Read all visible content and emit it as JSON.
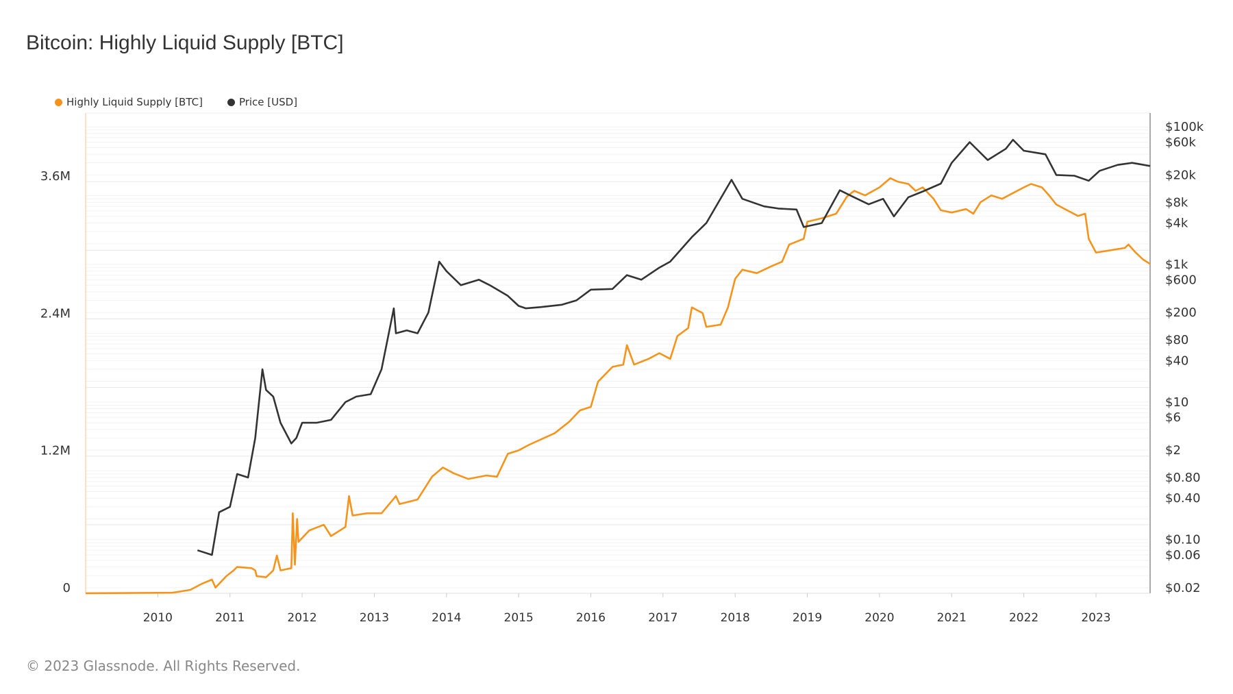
{
  "chart_data": {
    "type": "line",
    "title": "Bitcoin: Highly Liquid Supply [BTC]",
    "footer": "© 2023 Glassnode. All Rights Reserved.",
    "legend_position": "top-left",
    "grid": true,
    "x_range": [
      2009.0,
      2023.75
    ],
    "x_ticks": [
      "2010",
      "2011",
      "2012",
      "2013",
      "2014",
      "2015",
      "2016",
      "2017",
      "2018",
      "2019",
      "2020",
      "2021",
      "2022",
      "2023"
    ],
    "y_left": {
      "scale": "linear",
      "range": [
        0,
        4200000
      ],
      "ticks": [
        {
          "v": 0,
          "label": "0"
        },
        {
          "v": 1200000,
          "label": "1.2M"
        },
        {
          "v": 2400000,
          "label": "2.4M"
        },
        {
          "v": 3600000,
          "label": "3.6M"
        }
      ]
    },
    "y_right": {
      "scale": "log",
      "range": [
        0.0166,
        159000
      ],
      "ticks": [
        {
          "v": 100000,
          "label": "$100k"
        },
        {
          "v": 60000,
          "label": "$60k"
        },
        {
          "v": 20000,
          "label": "$20k"
        },
        {
          "v": 8000,
          "label": "$8k"
        },
        {
          "v": 4000,
          "label": "$4k"
        },
        {
          "v": 1000,
          "label": "$1k"
        },
        {
          "v": 600,
          "label": "$600"
        },
        {
          "v": 200,
          "label": "$200"
        },
        {
          "v": 80,
          "label": "$80"
        },
        {
          "v": 40,
          "label": "$40"
        },
        {
          "v": 10,
          "label": "$10"
        },
        {
          "v": 6,
          "label": "$6"
        },
        {
          "v": 2,
          "label": "$2"
        },
        {
          "v": 0.8,
          "label": "$0.80"
        },
        {
          "v": 0.4,
          "label": "$0.40"
        },
        {
          "v": 0.1,
          "label": "$0.10"
        },
        {
          "v": 0.06,
          "label": "$0.06"
        },
        {
          "v": 0.02,
          "label": "$0.02"
        }
      ]
    },
    "series": [
      {
        "name": "Highly Liquid Supply [BTC]",
        "axis": "left",
        "color": "#f7931a",
        "points": [
          [
            2009.0,
            0
          ],
          [
            2010.2,
            5000
          ],
          [
            2010.45,
            30000
          ],
          [
            2010.6,
            80000
          ],
          [
            2010.75,
            120000
          ],
          [
            2010.8,
            50000
          ],
          [
            2010.95,
            150000
          ],
          [
            2011.05,
            200000
          ],
          [
            2011.1,
            230000
          ],
          [
            2011.3,
            220000
          ],
          [
            2011.35,
            200000
          ],
          [
            2011.37,
            150000
          ],
          [
            2011.5,
            140000
          ],
          [
            2011.6,
            200000
          ],
          [
            2011.65,
            330000
          ],
          [
            2011.7,
            200000
          ],
          [
            2011.85,
            220000
          ],
          [
            2011.87,
            700000
          ],
          [
            2011.9,
            250000
          ],
          [
            2011.93,
            650000
          ],
          [
            2011.95,
            450000
          ],
          [
            2012.1,
            550000
          ],
          [
            2012.3,
            600000
          ],
          [
            2012.4,
            500000
          ],
          [
            2012.6,
            580000
          ],
          [
            2012.65,
            850000
          ],
          [
            2012.7,
            680000
          ],
          [
            2012.9,
            700000
          ],
          [
            2013.1,
            700000
          ],
          [
            2013.3,
            850000
          ],
          [
            2013.35,
            780000
          ],
          [
            2013.6,
            820000
          ],
          [
            2013.8,
            1020000
          ],
          [
            2013.95,
            1100000
          ],
          [
            2014.1,
            1050000
          ],
          [
            2014.3,
            1000000
          ],
          [
            2014.55,
            1030000
          ],
          [
            2014.7,
            1020000
          ],
          [
            2014.85,
            1220000
          ],
          [
            2015.0,
            1250000
          ],
          [
            2015.15,
            1300000
          ],
          [
            2015.5,
            1400000
          ],
          [
            2015.7,
            1500000
          ],
          [
            2015.85,
            1600000
          ],
          [
            2016.0,
            1630000
          ],
          [
            2016.1,
            1850000
          ],
          [
            2016.3,
            1980000
          ],
          [
            2016.45,
            2000000
          ],
          [
            2016.5,
            2170000
          ],
          [
            2016.6,
            2000000
          ],
          [
            2016.8,
            2050000
          ],
          [
            2016.95,
            2100000
          ],
          [
            2017.1,
            2050000
          ],
          [
            2017.2,
            2250000
          ],
          [
            2017.35,
            2320000
          ],
          [
            2017.4,
            2500000
          ],
          [
            2017.55,
            2450000
          ],
          [
            2017.6,
            2330000
          ],
          [
            2017.8,
            2350000
          ],
          [
            2017.9,
            2500000
          ],
          [
            2018.0,
            2750000
          ],
          [
            2018.1,
            2830000
          ],
          [
            2018.3,
            2800000
          ],
          [
            2018.5,
            2860000
          ],
          [
            2018.65,
            2900000
          ],
          [
            2018.75,
            3050000
          ],
          [
            2018.95,
            3100000
          ],
          [
            2019.0,
            3250000
          ],
          [
            2019.2,
            3280000
          ],
          [
            2019.4,
            3320000
          ],
          [
            2019.55,
            3470000
          ],
          [
            2019.65,
            3520000
          ],
          [
            2019.8,
            3480000
          ],
          [
            2020.0,
            3550000
          ],
          [
            2020.15,
            3630000
          ],
          [
            2020.25,
            3600000
          ],
          [
            2020.4,
            3580000
          ],
          [
            2020.5,
            3520000
          ],
          [
            2020.6,
            3550000
          ],
          [
            2020.75,
            3450000
          ],
          [
            2020.85,
            3350000
          ],
          [
            2021.0,
            3330000
          ],
          [
            2021.2,
            3360000
          ],
          [
            2021.3,
            3320000
          ],
          [
            2021.4,
            3420000
          ],
          [
            2021.55,
            3480000
          ],
          [
            2021.7,
            3450000
          ],
          [
            2021.85,
            3500000
          ],
          [
            2022.0,
            3550000
          ],
          [
            2022.1,
            3580000
          ],
          [
            2022.25,
            3550000
          ],
          [
            2022.35,
            3480000
          ],
          [
            2022.45,
            3400000
          ],
          [
            2022.6,
            3350000
          ],
          [
            2022.75,
            3300000
          ],
          [
            2022.85,
            3320000
          ],
          [
            2022.9,
            3100000
          ],
          [
            2023.0,
            2980000
          ],
          [
            2023.2,
            3000000
          ],
          [
            2023.4,
            3020000
          ],
          [
            2023.45,
            3050000
          ],
          [
            2023.55,
            2980000
          ],
          [
            2023.65,
            2920000
          ],
          [
            2023.75,
            2880000
          ]
        ]
      },
      {
        "name": "Price [USD]",
        "axis": "right",
        "color": "#333333",
        "points": [
          [
            2010.55,
            0.07
          ],
          [
            2010.75,
            0.06
          ],
          [
            2010.85,
            0.25
          ],
          [
            2011.0,
            0.3
          ],
          [
            2011.1,
            0.9
          ],
          [
            2011.25,
            0.8
          ],
          [
            2011.35,
            3
          ],
          [
            2011.45,
            30
          ],
          [
            2011.5,
            15
          ],
          [
            2011.6,
            12
          ],
          [
            2011.7,
            5
          ],
          [
            2011.85,
            2.5
          ],
          [
            2011.92,
            3
          ],
          [
            2012.0,
            5
          ],
          [
            2012.2,
            5
          ],
          [
            2012.4,
            5.5
          ],
          [
            2012.6,
            10
          ],
          [
            2012.75,
            12
          ],
          [
            2012.95,
            13
          ],
          [
            2013.1,
            30
          ],
          [
            2013.27,
            230
          ],
          [
            2013.3,
            100
          ],
          [
            2013.45,
            110
          ],
          [
            2013.6,
            100
          ],
          [
            2013.75,
            200
          ],
          [
            2013.9,
            1100
          ],
          [
            2014.0,
            800
          ],
          [
            2014.2,
            500
          ],
          [
            2014.45,
            600
          ],
          [
            2014.6,
            500
          ],
          [
            2014.85,
            350
          ],
          [
            2015.0,
            250
          ],
          [
            2015.1,
            230
          ],
          [
            2015.3,
            240
          ],
          [
            2015.6,
            260
          ],
          [
            2015.8,
            300
          ],
          [
            2016.0,
            430
          ],
          [
            2016.3,
            440
          ],
          [
            2016.5,
            700
          ],
          [
            2016.7,
            600
          ],
          [
            2016.95,
            900
          ],
          [
            2017.1,
            1100
          ],
          [
            2017.4,
            2500
          ],
          [
            2017.6,
            4000
          ],
          [
            2017.95,
            17000
          ],
          [
            2018.1,
            9000
          ],
          [
            2018.4,
            7000
          ],
          [
            2018.6,
            6500
          ],
          [
            2018.85,
            6300
          ],
          [
            2018.95,
            3500
          ],
          [
            2019.2,
            4000
          ],
          [
            2019.45,
            12000
          ],
          [
            2019.6,
            10000
          ],
          [
            2019.85,
            7500
          ],
          [
            2020.05,
            9000
          ],
          [
            2020.2,
            5000
          ],
          [
            2020.4,
            9500
          ],
          [
            2020.6,
            11500
          ],
          [
            2020.85,
            15000
          ],
          [
            2021.0,
            30000
          ],
          [
            2021.25,
            60000
          ],
          [
            2021.5,
            33000
          ],
          [
            2021.75,
            48000
          ],
          [
            2021.85,
            65000
          ],
          [
            2022.0,
            45000
          ],
          [
            2022.3,
            40000
          ],
          [
            2022.45,
            20000
          ],
          [
            2022.7,
            19500
          ],
          [
            2022.9,
            16500
          ],
          [
            2023.05,
            23000
          ],
          [
            2023.3,
            28000
          ],
          [
            2023.5,
            30000
          ],
          [
            2023.75,
            27000
          ]
        ]
      }
    ]
  }
}
